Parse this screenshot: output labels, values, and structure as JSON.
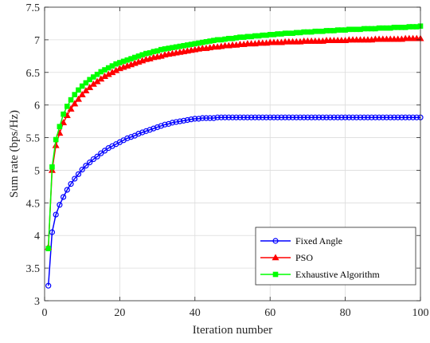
{
  "chart_data": {
    "type": "line",
    "xlabel": "Iteration number",
    "ylabel": "Sum rate (bps/Hz)",
    "xlim": [
      0,
      100
    ],
    "ylim": [
      3,
      7.5
    ],
    "xticks": [
      0,
      20,
      40,
      60,
      80,
      100
    ],
    "yticks": [
      3,
      3.5,
      4,
      4.5,
      5,
      5.5,
      6,
      6.5,
      7,
      7.5
    ],
    "ytick_labels": [
      "3",
      "3.5",
      "4",
      "4.5",
      "5",
      "5.5",
      "6",
      "6.5",
      "7",
      "7.5"
    ],
    "grid": true,
    "legend_position": "bottom-right",
    "x": [
      1,
      2,
      3,
      4,
      5,
      6,
      7,
      8,
      9,
      10,
      11,
      12,
      13,
      14,
      15,
      16,
      17,
      18,
      19,
      20,
      21,
      22,
      23,
      24,
      25,
      26,
      27,
      28,
      29,
      30,
      31,
      32,
      33,
      34,
      35,
      36,
      37,
      38,
      39,
      40,
      41,
      42,
      43,
      44,
      45,
      46,
      47,
      48,
      49,
      50,
      51,
      52,
      53,
      54,
      55,
      56,
      57,
      58,
      59,
      60,
      61,
      62,
      63,
      64,
      65,
      66,
      67,
      68,
      69,
      70,
      71,
      72,
      73,
      74,
      75,
      76,
      77,
      78,
      79,
      80,
      81,
      82,
      83,
      84,
      85,
      86,
      87,
      88,
      89,
      90,
      91,
      92,
      93,
      94,
      95,
      96,
      97,
      98,
      99,
      100
    ],
    "series": [
      {
        "name": "Fixed Angle",
        "color": "#0000ff",
        "marker": "circle",
        "values": [
          3.23,
          4.05,
          4.32,
          4.47,
          4.59,
          4.7,
          4.79,
          4.87,
          4.94,
          5.01,
          5.07,
          5.12,
          5.17,
          5.21,
          5.26,
          5.3,
          5.34,
          5.37,
          5.4,
          5.43,
          5.46,
          5.49,
          5.51,
          5.53,
          5.56,
          5.58,
          5.6,
          5.62,
          5.64,
          5.66,
          5.68,
          5.7,
          5.71,
          5.73,
          5.74,
          5.75,
          5.76,
          5.77,
          5.78,
          5.79,
          5.79,
          5.8,
          5.8,
          5.8,
          5.8,
          5.81,
          5.81,
          5.81,
          5.81,
          5.81,
          5.81,
          5.81,
          5.81,
          5.81,
          5.81,
          5.81,
          5.81,
          5.81,
          5.81,
          5.81,
          5.81,
          5.81,
          5.81,
          5.81,
          5.81,
          5.81,
          5.81,
          5.81,
          5.81,
          5.81,
          5.81,
          5.81,
          5.81,
          5.81,
          5.81,
          5.81,
          5.81,
          5.81,
          5.81,
          5.81,
          5.81,
          5.81,
          5.81,
          5.81,
          5.81,
          5.81,
          5.81,
          5.81,
          5.81,
          5.81,
          5.81,
          5.81,
          5.81,
          5.81,
          5.81,
          5.81,
          5.81,
          5.81,
          5.81,
          5.81
        ]
      },
      {
        "name": "PSO",
        "color": "#ff0000",
        "marker": "triangle",
        "values": [
          3.82,
          5.0,
          5.38,
          5.57,
          5.73,
          5.84,
          5.94,
          6.02,
          6.09,
          6.16,
          6.22,
          6.27,
          6.32,
          6.36,
          6.4,
          6.44,
          6.47,
          6.5,
          6.53,
          6.56,
          6.58,
          6.6,
          6.62,
          6.64,
          6.66,
          6.68,
          6.7,
          6.71,
          6.73,
          6.74,
          6.75,
          6.77,
          6.78,
          6.79,
          6.8,
          6.81,
          6.82,
          6.83,
          6.84,
          6.85,
          6.86,
          6.87,
          6.87,
          6.88,
          6.89,
          6.89,
          6.9,
          6.91,
          6.91,
          6.92,
          6.92,
          6.93,
          6.93,
          6.94,
          6.94,
          6.94,
          6.95,
          6.95,
          6.95,
          6.96,
          6.96,
          6.96,
          6.96,
          6.97,
          6.97,
          6.97,
          6.97,
          6.97,
          6.98,
          6.98,
          6.98,
          6.98,
          6.98,
          6.98,
          6.99,
          6.99,
          6.99,
          6.99,
          6.99,
          6.99,
          7.0,
          7.0,
          7.0,
          7.0,
          7.0,
          7.0,
          7.0,
          7.01,
          7.01,
          7.01,
          7.01,
          7.01,
          7.01,
          7.01,
          7.01,
          7.02,
          7.02,
          7.02,
          7.02,
          7.02
        ]
      },
      {
        "name": "Exhaustive Algorithm",
        "color": "#00ff00",
        "marker": "square",
        "values": [
          3.8,
          5.05,
          5.47,
          5.67,
          5.86,
          5.98,
          6.08,
          6.16,
          6.23,
          6.29,
          6.34,
          6.39,
          6.43,
          6.47,
          6.51,
          6.54,
          6.57,
          6.6,
          6.63,
          6.65,
          6.67,
          6.69,
          6.71,
          6.73,
          6.75,
          6.77,
          6.79,
          6.8,
          6.82,
          6.83,
          6.85,
          6.86,
          6.87,
          6.88,
          6.89,
          6.9,
          6.91,
          6.92,
          6.93,
          6.94,
          6.95,
          6.96,
          6.97,
          6.98,
          6.99,
          7.0,
          7.0,
          7.01,
          7.02,
          7.02,
          7.03,
          7.04,
          7.04,
          7.05,
          7.05,
          7.06,
          7.06,
          7.07,
          7.07,
          7.08,
          7.08,
          7.09,
          7.09,
          7.1,
          7.1,
          7.1,
          7.11,
          7.11,
          7.12,
          7.12,
          7.12,
          7.13,
          7.13,
          7.13,
          7.14,
          7.14,
          7.14,
          7.15,
          7.15,
          7.15,
          7.16,
          7.16,
          7.16,
          7.16,
          7.17,
          7.17,
          7.17,
          7.17,
          7.18,
          7.18,
          7.18,
          7.18,
          7.19,
          7.19,
          7.19,
          7.19,
          7.2,
          7.2,
          7.2,
          7.21
        ]
      }
    ]
  }
}
